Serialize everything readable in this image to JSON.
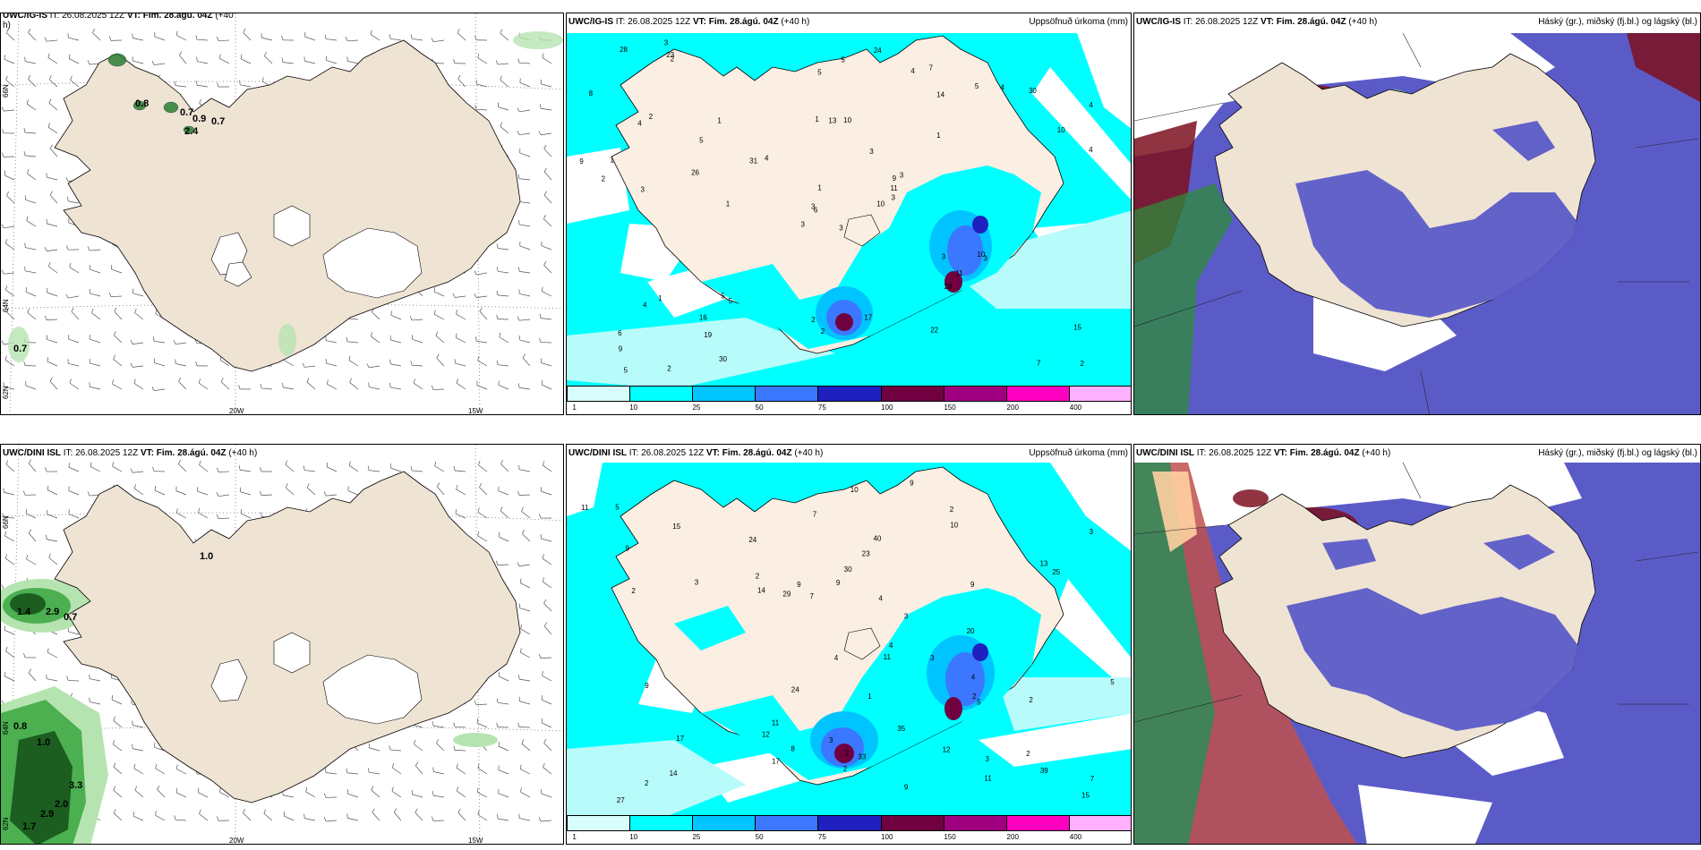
{
  "colors": {
    "land": "#efe3d3",
    "coast": "#000000",
    "cyan": "#00ffff",
    "light_cyan": "#b8fbfb",
    "blue": "#3b5bdb",
    "dark_red": "#7d1020",
    "green": "#2e8b3a",
    "pale_green": "#b6e4b0",
    "white": "#ffffff"
  },
  "panels": {
    "tl": {
      "model": "UWC/IG-IS",
      "it": "IT: 26.08.2025 12Z",
      "vt": "VT: Fim. 28.ágú. 04Z",
      "lead": "(+40",
      "lead2": "h)",
      "right": "",
      "values": [
        "0.8",
        "0.7",
        "0.9",
        "0.7",
        "2.4",
        "0.7"
      ],
      "lat": [
        "66N",
        "64N",
        "62N"
      ],
      "lon": [
        "20W",
        "15W"
      ]
    },
    "tm": {
      "model": "UWC/IG-IS",
      "it": "IT: 26.08.2025 12Z",
      "vt": "VT: Fim. 28.ágú. 04Z",
      "lead": "(+40 h)",
      "right": "Uppsöfnuð úrkoma (mm)"
    },
    "tr": {
      "model": "UWC/IG-IS",
      "it": "IT: 26.08.2025 12Z",
      "vt": "VT: Fim. 28.ágú. 04Z",
      "lead": "(+40 h)",
      "right": "Háský (gr.), miðský (fj.bl.) og lágský (bl.)"
    },
    "bl": {
      "model": "UWC/DINI ISL",
      "it": "IT: 26.08.2025 12Z",
      "vt": "VT: Fim. 28.ágú. 04Z",
      "lead": "(+40 h)",
      "right": "",
      "values": [
        "1.0",
        "1.4",
        "2.9",
        "0.7",
        "0.8",
        "1.0",
        "3.3",
        "2.0",
        "2.9",
        "1.7"
      ],
      "lat": [
        "66N",
        "64N",
        "62N"
      ],
      "lon": [
        "20W",
        "15W"
      ]
    },
    "bm": {
      "model": "UWC/DINI ISL",
      "it": "IT: 26.08.2025 12Z",
      "vt": "VT: Fim. 28.ágú. 04Z",
      "lead": "(+40 h)",
      "right": "Uppsöfnuð úrkoma (mm)"
    },
    "br": {
      "model": "UWC/DINI ISL",
      "it": "IT: 26.08.2025 12Z",
      "vt": "VT: Fim. 28.ágú. 04Z",
      "lead": "(+40 h)",
      "right": "Háský (gr.), miðský (fj.bl.) og lágský (bl.)"
    }
  },
  "colorbar": {
    "colors": [
      "#d8fdfd",
      "#00ffff",
      "#00c4ff",
      "#3c78ff",
      "#2020c0",
      "#700040",
      "#a00080",
      "#ff00c0",
      "#ffb0ff"
    ],
    "labels": [
      "1",
      "10",
      "25",
      "50",
      "75",
      "100",
      "150",
      "200",
      "400"
    ]
  },
  "precip_top": [
    "3",
    "4",
    "6",
    "6",
    "9",
    "5",
    "7",
    "10",
    "14",
    "10",
    "2",
    "2",
    "3",
    "4",
    "3",
    "1",
    "2",
    "1",
    "3",
    "1",
    "4",
    "9",
    "19",
    "13",
    "3",
    "3",
    "2",
    "5",
    "2",
    "3",
    "4",
    "3",
    "2",
    "1",
    "1",
    "5",
    "5",
    "7",
    "15",
    "10",
    "24",
    "31",
    "26",
    "28",
    "30",
    "9",
    "11",
    "5",
    "2",
    "3",
    "4",
    "10",
    "8",
    "11",
    "22",
    "16",
    "23",
    "28",
    "17",
    "30",
    "5",
    "1",
    "1",
    "5",
    "4",
    "3",
    "4"
  ],
  "precip_bot": [
    "2",
    "2",
    "4",
    "1",
    "7",
    "9",
    "2",
    "2",
    "3",
    "12",
    "15",
    "14",
    "8",
    "10",
    "12",
    "2",
    "2",
    "9",
    "4",
    "3",
    "11",
    "14",
    "2",
    "3",
    "5",
    "10",
    "9",
    "23",
    "25",
    "35",
    "39",
    "24",
    "40",
    "27",
    "11",
    "9",
    "2",
    "9",
    "2",
    "3",
    "3",
    "11",
    "24",
    "17",
    "20",
    "29",
    "30",
    "33",
    "5",
    "7",
    "9",
    "9",
    "5",
    "11",
    "17",
    "15",
    "13",
    "7",
    "3",
    "4",
    "4"
  ]
}
